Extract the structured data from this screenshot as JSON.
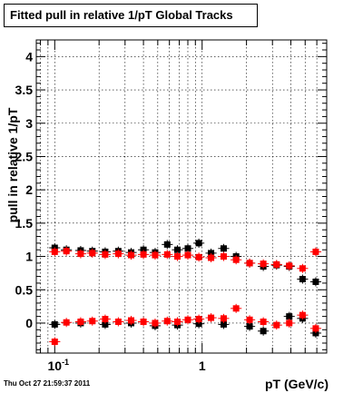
{
  "title": "Fitted pull in relative 1/pT  Global Tracks",
  "footer": "Thu Oct 27 21:59:37 2011",
  "chart_data": {
    "type": "scatter",
    "title": "Fitted pull in relative 1/pT  Global Tracks",
    "xlabel": "pT (GeV/c)",
    "ylabel": "pull in relative 1/pT",
    "xscale": "log",
    "xlim": [
      0.075,
      7.0
    ],
    "ylim": [
      -0.45,
      4.25
    ],
    "grid": true,
    "x_tick_labels": [
      {
        "value": 0.1,
        "base": "10",
        "exp": "-1"
      },
      {
        "value": 1,
        "base": "1",
        "exp": ""
      }
    ],
    "y_ticks": [
      0,
      0.5,
      1,
      1.5,
      2,
      2.5,
      3,
      3.5,
      4
    ],
    "y_tick_labels": [
      "0",
      "0.5",
      "1",
      "1.5",
      "2",
      "2.5",
      "3",
      "3.5",
      "4"
    ],
    "series": [
      {
        "color": "#000000",
        "marker": "square",
        "points": [
          {
            "x": 0.1,
            "y": 1.13
          },
          {
            "x": 0.12,
            "y": 1.1
          },
          {
            "x": 0.15,
            "y": 1.09
          },
          {
            "x": 0.18,
            "y": 1.08
          },
          {
            "x": 0.22,
            "y": 1.07
          },
          {
            "x": 0.27,
            "y": 1.08
          },
          {
            "x": 0.33,
            "y": 1.06
          },
          {
            "x": 0.4,
            "y": 1.1
          },
          {
            "x": 0.48,
            "y": 1.06
          },
          {
            "x": 0.58,
            "y": 1.18
          },
          {
            "x": 0.68,
            "y": 1.1
          },
          {
            "x": 0.8,
            "y": 1.12
          },
          {
            "x": 0.95,
            "y": 1.2
          },
          {
            "x": 1.15,
            "y": 1.05
          },
          {
            "x": 1.4,
            "y": 1.12
          },
          {
            "x": 1.7,
            "y": 1.0
          },
          {
            "x": 2.1,
            "y": 0.9
          },
          {
            "x": 2.6,
            "y": 0.85
          },
          {
            "x": 3.2,
            "y": 0.87
          },
          {
            "x": 3.9,
            "y": 0.85
          },
          {
            "x": 4.8,
            "y": 0.66
          },
          {
            "x": 5.9,
            "y": 0.62
          },
          {
            "x": 0.1,
            "y": -0.02
          },
          {
            "x": 0.15,
            "y": 0.0
          },
          {
            "x": 0.22,
            "y": -0.02
          },
          {
            "x": 0.33,
            "y": 0.0
          },
          {
            "x": 0.48,
            "y": -0.04
          },
          {
            "x": 0.68,
            "y": -0.03
          },
          {
            "x": 0.95,
            "y": -0.01
          },
          {
            "x": 1.4,
            "y": -0.02
          },
          {
            "x": 2.1,
            "y": -0.05
          },
          {
            "x": 2.6,
            "y": -0.12
          },
          {
            "x": 3.9,
            "y": 0.1
          },
          {
            "x": 4.8,
            "y": 0.07
          },
          {
            "x": 5.9,
            "y": -0.15
          }
        ]
      },
      {
        "color": "#ff0000",
        "marker": "square",
        "points": [
          {
            "x": 0.1,
            "y": 1.07
          },
          {
            "x": 0.12,
            "y": 1.08
          },
          {
            "x": 0.15,
            "y": 1.04
          },
          {
            "x": 0.18,
            "y": 1.05
          },
          {
            "x": 0.22,
            "y": 1.03
          },
          {
            "x": 0.27,
            "y": 1.04
          },
          {
            "x": 0.33,
            "y": 1.02
          },
          {
            "x": 0.4,
            "y": 1.03
          },
          {
            "x": 0.48,
            "y": 1.02
          },
          {
            "x": 0.58,
            "y": 1.03
          },
          {
            "x": 0.68,
            "y": 1.0
          },
          {
            "x": 0.8,
            "y": 1.02
          },
          {
            "x": 0.95,
            "y": 0.99
          },
          {
            "x": 1.15,
            "y": 0.98
          },
          {
            "x": 1.4,
            "y": 1.0
          },
          {
            "x": 1.7,
            "y": 0.95
          },
          {
            "x": 2.1,
            "y": 0.9
          },
          {
            "x": 2.6,
            "y": 0.89
          },
          {
            "x": 3.2,
            "y": 0.88
          },
          {
            "x": 3.9,
            "y": 0.86
          },
          {
            "x": 4.8,
            "y": 0.82
          },
          {
            "x": 5.9,
            "y": 1.07
          },
          {
            "x": 0.1,
            "y": -0.28
          },
          {
            "x": 0.12,
            "y": 0.01
          },
          {
            "x": 0.15,
            "y": 0.02
          },
          {
            "x": 0.18,
            "y": 0.03
          },
          {
            "x": 0.22,
            "y": 0.06
          },
          {
            "x": 0.27,
            "y": 0.02
          },
          {
            "x": 0.33,
            "y": 0.04
          },
          {
            "x": 0.4,
            "y": 0.02
          },
          {
            "x": 0.48,
            "y": 0.0
          },
          {
            "x": 0.58,
            "y": 0.03
          },
          {
            "x": 0.68,
            "y": 0.02
          },
          {
            "x": 0.8,
            "y": 0.05
          },
          {
            "x": 0.95,
            "y": 0.06
          },
          {
            "x": 1.15,
            "y": 0.08
          },
          {
            "x": 1.4,
            "y": 0.07
          },
          {
            "x": 1.7,
            "y": 0.22
          },
          {
            "x": 2.1,
            "y": 0.05
          },
          {
            "x": 2.6,
            "y": 0.02
          },
          {
            "x": 3.2,
            "y": -0.03
          },
          {
            "x": 3.9,
            "y": 0.0
          },
          {
            "x": 4.8,
            "y": 0.12
          },
          {
            "x": 5.9,
            "y": -0.08
          }
        ]
      }
    ]
  }
}
